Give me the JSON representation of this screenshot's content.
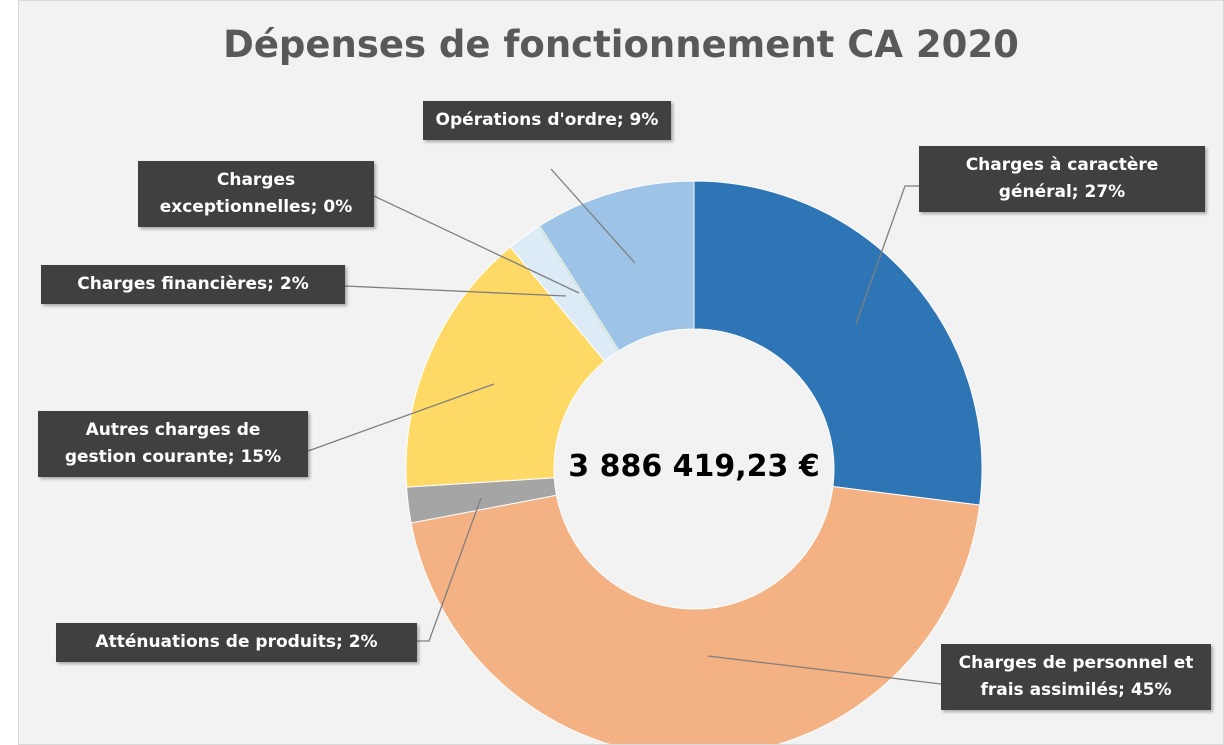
{
  "chart_data": {
    "type": "pie",
    "donut": true,
    "title": "Dépenses de fonctionnement CA 2020",
    "center_label": "3 886 419,23 €",
    "values": [
      27,
      45,
      2,
      15,
      2,
      0,
      9
    ],
    "value_labels": [
      "Charges à caractère général; 27%",
      "Charges de personnel et frais assimilés; 45%",
      "Atténuations de produits; 2%",
      "Autres charges de gestion courante; 15%",
      "Charges financières; 2%",
      "Charges exceptionnelles; 0%",
      "Opérations d'ordre; 9%"
    ],
    "colors": [
      "#2e75b6",
      "#f4b183",
      "#a5a5a5",
      "#ffd966",
      "#ddebf7",
      "#70ad47",
      "#9dc3e6"
    ]
  }
}
